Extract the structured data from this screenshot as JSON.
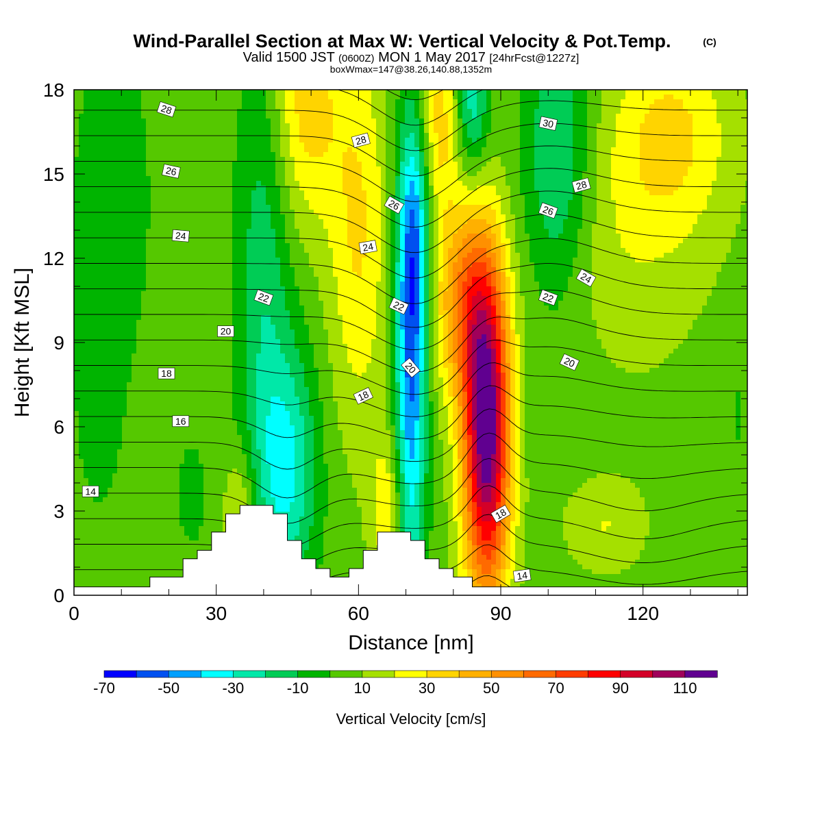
{
  "title": {
    "main": "Wind-Parallel Section at Max W: Vertical Velocity & Pot.Temp.",
    "copyright": "(C)",
    "valid_prefix": "Valid 1500 JST",
    "valid_utc": "(0600Z)",
    "valid_date": "MON 1 May 2017",
    "forecast": "[24hrFcst@1227z]",
    "box": "boxWmax=147@38.26,140.88,1352m"
  },
  "chart_data": {
    "type": "heatmap",
    "xlabel": "Distance [nm]",
    "ylabel": "Height [Kft MSL]",
    "xlim": [
      0,
      142
    ],
    "ylim": [
      0,
      18
    ],
    "xticks": [
      "0",
      "30",
      "60",
      "90",
      "120"
    ],
    "xtick_values": [
      0,
      30,
      60,
      90,
      120
    ],
    "yticks": [
      "0",
      "3",
      "6",
      "9",
      "12",
      "15",
      "18"
    ],
    "ytick_values": [
      0,
      3,
      6,
      9,
      12,
      15,
      18
    ],
    "colorbar": {
      "label": "Vertical Velocity [cm/s]",
      "tick_labels": [
        "-70",
        "-50",
        "-30",
        "-10",
        "10",
        "30",
        "50",
        "70",
        "90",
        "110"
      ],
      "tick_values": [
        -70,
        -50,
        -30,
        -10,
        10,
        30,
        50,
        70,
        90,
        110
      ],
      "levels": [
        -70,
        -60,
        -50,
        -40,
        -30,
        -20,
        -10,
        0,
        10,
        20,
        30,
        40,
        50,
        60,
        70,
        80,
        90,
        100,
        110,
        120
      ],
      "colors": [
        "#0000ff",
        "#0050f0",
        "#00a0ff",
        "#00ffff",
        "#00e8a8",
        "#00cc55",
        "#00b400",
        "#55c800",
        "#a5e000",
        "#ffff00",
        "#ffd400",
        "#ffb000",
        "#ff9000",
        "#ff6a00",
        "#ff3c00",
        "#ff0000",
        "#d40028",
        "#a0005a",
        "#600090"
      ]
    },
    "fields": {
      "background_velocity": 5,
      "velocity_features": [
        {
          "x": 87,
          "z": 5.8,
          "sx": 3.5,
          "sz": 4.2,
          "value": 115
        },
        {
          "x": 82,
          "z": 10.5,
          "sx": 4.5,
          "sz": 2.5,
          "value": 45
        },
        {
          "x": 71,
          "z": 8.0,
          "sx": 2.3,
          "sz": 5.5,
          "value": -55
        },
        {
          "x": 72,
          "z": 13.0,
          "sx": 2.5,
          "sz": 3.0,
          "value": -30
        },
        {
          "x": 45,
          "z": 4.5,
          "sx": 4.5,
          "sz": 3.0,
          "value": -35
        },
        {
          "x": 40,
          "z": 11.0,
          "sx": 4.0,
          "sz": 6.0,
          "value": -22
        },
        {
          "x": 60,
          "z": 13.0,
          "sx": 4.5,
          "sz": 5.0,
          "value": 26
        },
        {
          "x": 49,
          "z": 17.5,
          "sx": 5.0,
          "sz": 3.0,
          "value": 30
        },
        {
          "x": 77,
          "z": 17.0,
          "sx": 3.0,
          "sz": 2.5,
          "value": 30
        },
        {
          "x": 84,
          "z": 17.5,
          "sx": 2.5,
          "sz": 1.8,
          "value": -32
        },
        {
          "x": 102,
          "z": 15.5,
          "sx": 5.0,
          "sz": 3.5,
          "value": -28
        },
        {
          "x": 126,
          "z": 16.5,
          "sx": 9.0,
          "sz": 2.5,
          "value": 25
        },
        {
          "x": 117,
          "z": 12.5,
          "sx": 12.0,
          "sz": 3.5,
          "value": 12
        },
        {
          "x": 8,
          "z": 14.0,
          "sx": 8.0,
          "sz": 6.0,
          "value": -8
        },
        {
          "x": 5,
          "z": 6.5,
          "sx": 3.5,
          "sz": 3.0,
          "value": -6
        },
        {
          "x": 25,
          "z": 3.5,
          "sx": 4.0,
          "sz": 2.5,
          "value": -6
        },
        {
          "x": 35,
          "z": 3.0,
          "sx": 2.5,
          "sz": 1.5,
          "value": 20
        },
        {
          "x": 66,
          "z": 3.0,
          "sx": 2.5,
          "sz": 2.0,
          "value": 22
        },
        {
          "x": 112,
          "z": 2.5,
          "sx": 6.0,
          "sz": 1.2,
          "value": 15
        },
        {
          "x": 102,
          "z": 6.8,
          "sx": 6.0,
          "sz": 1.5,
          "value": -5
        },
        {
          "x": 140,
          "z": 6.5,
          "sx": 1.5,
          "sz": 2.0,
          "value": -6
        }
      ]
    },
    "terrain": {
      "x": [
        0,
        16,
        16,
        19,
        19,
        23,
        23,
        26,
        26,
        29,
        29,
        32,
        32,
        35,
        35,
        38,
        38,
        42,
        42,
        45,
        45,
        48,
        48,
        51,
        51,
        54,
        54,
        58,
        58,
        61,
        61,
        64,
        64,
        71,
        71,
        74,
        74,
        77,
        77,
        80,
        80,
        84,
        84,
        87,
        87,
        90,
        90,
        142
      ],
      "z": [
        0.3,
        0.3,
        0.65,
        0.65,
        0.65,
        0.65,
        1.3,
        1.3,
        1.6,
        1.6,
        2.25,
        2.25,
        2.9,
        2.9,
        3.2,
        3.2,
        3.2,
        3.2,
        2.9,
        2.9,
        1.95,
        1.95,
        1.3,
        1.3,
        0.95,
        0.95,
        0.65,
        0.65,
        0.95,
        0.95,
        1.6,
        1.6,
        2.25,
        2.25,
        1.95,
        1.95,
        1.3,
        1.3,
        0.95,
        0.95,
        0.65,
        0.65,
        0.3,
        0.3,
        0.3,
        0.3,
        0.3,
        0.3
      ]
    },
    "theta_contour_labels": [
      {
        "text": "28",
        "x": 19.5,
        "z": 17.3,
        "angle": 18
      },
      {
        "text": "26",
        "x": 20.5,
        "z": 15.1,
        "angle": 12
      },
      {
        "text": "24",
        "x": 22.5,
        "z": 12.8,
        "angle": 5
      },
      {
        "text": "22",
        "x": 40.0,
        "z": 10.6,
        "angle": 20
      },
      {
        "text": "20",
        "x": 32.0,
        "z": 9.4,
        "angle": 0
      },
      {
        "text": "18",
        "x": 19.5,
        "z": 7.9,
        "angle": 0
      },
      {
        "text": "16",
        "x": 22.5,
        "z": 6.2,
        "angle": 0
      },
      {
        "text": "14",
        "x": 3.5,
        "z": 3.7,
        "angle": 0
      },
      {
        "text": "28",
        "x": 60.5,
        "z": 16.2,
        "angle": -15
      },
      {
        "text": "26",
        "x": 67.5,
        "z": 13.9,
        "angle": 30
      },
      {
        "text": "24",
        "x": 62.0,
        "z": 12.4,
        "angle": -10
      },
      {
        "text": "22",
        "x": 68.5,
        "z": 10.3,
        "angle": 25
      },
      {
        "text": "20",
        "x": 71.0,
        "z": 8.1,
        "angle": 50
      },
      {
        "text": "18",
        "x": 61.0,
        "z": 7.1,
        "angle": -25
      },
      {
        "text": "30",
        "x": 100.0,
        "z": 16.8,
        "angle": 12
      },
      {
        "text": "28",
        "x": 107.0,
        "z": 14.6,
        "angle": -15
      },
      {
        "text": "26",
        "x": 100.0,
        "z": 13.7,
        "angle": 20
      },
      {
        "text": "24",
        "x": 108.0,
        "z": 11.3,
        "angle": 30
      },
      {
        "text": "22",
        "x": 100.0,
        "z": 10.6,
        "angle": 20
      },
      {
        "text": "20",
        "x": 104.5,
        "z": 8.3,
        "angle": 25
      },
      {
        "text": "18",
        "x": 90.0,
        "z": 2.9,
        "angle": -30
      },
      {
        "text": "14",
        "x": 94.5,
        "z": 0.7,
        "angle": -8
      }
    ]
  }
}
